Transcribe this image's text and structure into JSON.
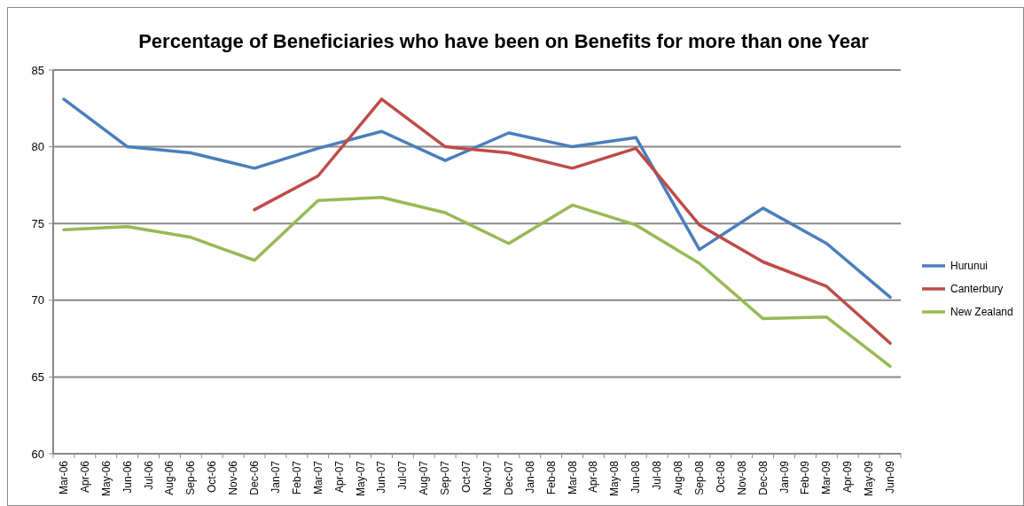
{
  "chart_data": {
    "type": "line",
    "title": "Percentage of Beneficiaries who have been on Benefits for more than one Year",
    "categories": [
      "Mar-06",
      "Apr-06",
      "May-06",
      "Jun-06",
      "Jul-06",
      "Aug-06",
      "Sep-06",
      "Oct-06",
      "Nov-06",
      "Dec-06",
      "Jan-07",
      "Feb-07",
      "Mar-07",
      "Apr-07",
      "May-07",
      "Jun-07",
      "Jul-07",
      "Aug-07",
      "Sep-07",
      "Oct-07",
      "Nov-07",
      "Dec-07",
      "Jan-08",
      "Feb-08",
      "Mar-08",
      "Apr-08",
      "May-08",
      "Jun-08",
      "Jul-08",
      "Aug-08",
      "Sep-08",
      "Oct-08",
      "Nov-08",
      "Dec-08",
      "Jan-09",
      "Feb-09",
      "Mar-09",
      "Apr-09",
      "May-09",
      "Jun-09"
    ],
    "series": [
      {
        "name": "Hurunui",
        "color": "#4a7ebb",
        "values": [
          83.1,
          null,
          null,
          80.0,
          null,
          null,
          79.6,
          null,
          null,
          78.6,
          null,
          null,
          79.9,
          null,
          null,
          81.0,
          null,
          null,
          79.1,
          null,
          null,
          80.9,
          null,
          null,
          80.0,
          null,
          null,
          80.6,
          null,
          null,
          73.3,
          null,
          null,
          76.0,
          null,
          null,
          73.7,
          null,
          null,
          70.2
        ]
      },
      {
        "name": "Canterbury",
        "color": "#be4b48",
        "values": [
          null,
          null,
          null,
          null,
          null,
          null,
          null,
          null,
          null,
          75.9,
          null,
          null,
          78.1,
          null,
          null,
          83.1,
          null,
          null,
          80.0,
          null,
          null,
          79.6,
          null,
          null,
          78.6,
          null,
          null,
          79.9,
          null,
          null,
          74.9,
          null,
          null,
          72.5,
          null,
          null,
          70.9,
          null,
          null,
          67.2
        ]
      },
      {
        "name": "New Zealand",
        "color": "#98b954",
        "values": [
          74.6,
          null,
          null,
          74.8,
          null,
          null,
          74.1,
          null,
          null,
          72.6,
          null,
          null,
          76.5,
          null,
          null,
          76.7,
          null,
          null,
          75.7,
          null,
          null,
          73.7,
          null,
          null,
          76.2,
          null,
          null,
          74.9,
          null,
          null,
          72.4,
          null,
          null,
          68.8,
          null,
          null,
          68.9,
          null,
          null,
          65.7
        ]
      }
    ],
    "ylim": [
      60,
      85
    ],
    "yticks": [
      60,
      65,
      70,
      75,
      80,
      85
    ],
    "grid": "y",
    "legend": "right"
  }
}
